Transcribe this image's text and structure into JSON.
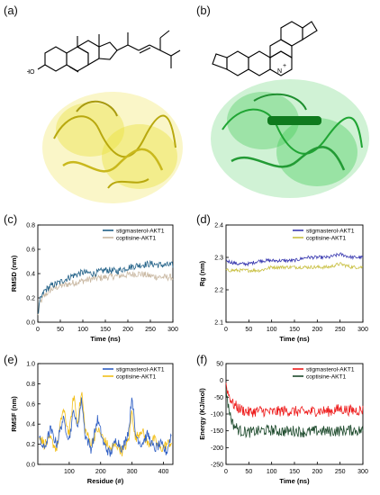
{
  "figure": {
    "panel_labels": [
      "(a)",
      "(b)",
      "(c)",
      "(d)",
      "(e)",
      "(f)"
    ],
    "atoms": {
      "a_hydroxyl": "HO",
      "b_nitrogen": "N",
      "b_charge": "+"
    },
    "colors": {
      "protein_a": "#e8e233",
      "protein_b": "#33c84a",
      "ligand_b": "#0f7a1e"
    }
  },
  "chart_data": [
    {
      "id": "c",
      "type": "line",
      "xlabel": "Time (ns)",
      "ylabel": "RMSD (nm)",
      "xlim": [
        0,
        300
      ],
      "ylim": [
        0,
        0.8
      ],
      "xticks": [
        "0",
        "50",
        "100",
        "150",
        "200",
        "250",
        "300"
      ],
      "yticks": [
        "0.0",
        "0.2",
        "0.4",
        "0.6",
        "0.8"
      ],
      "legend_position": "top-right",
      "series": [
        {
          "name": "stigmasterol-AKT1",
          "color": "#1f5f86",
          "x": [
            0,
            5,
            15,
            30,
            50,
            75,
            100,
            125,
            150,
            175,
            200,
            225,
            250,
            275,
            300
          ],
          "y": [
            0.05,
            0.18,
            0.26,
            0.3,
            0.33,
            0.38,
            0.41,
            0.4,
            0.43,
            0.42,
            0.45,
            0.47,
            0.48,
            0.47,
            0.47
          ]
        },
        {
          "name": "coptisine-AKT1",
          "color": "#c9b8a2",
          "x": [
            0,
            5,
            15,
            30,
            50,
            75,
            100,
            125,
            150,
            175,
            200,
            225,
            250,
            275,
            300
          ],
          "y": [
            0.05,
            0.16,
            0.22,
            0.27,
            0.3,
            0.32,
            0.34,
            0.36,
            0.37,
            0.38,
            0.39,
            0.4,
            0.38,
            0.37,
            0.37
          ]
        }
      ]
    },
    {
      "id": "d",
      "type": "line",
      "xlabel": "Time (ns)",
      "ylabel": "Rg (nm)",
      "xlim": [
        0,
        300
      ],
      "ylim": [
        2.1,
        2.4
      ],
      "xticks": [
        "0",
        "50",
        "100",
        "150",
        "200",
        "250",
        "300"
      ],
      "yticks": [
        "2.1",
        "2.2",
        "2.3",
        "2.4"
      ],
      "legend_position": "top-right",
      "series": [
        {
          "name": "stigmasterol-AKT1",
          "color": "#3a3ab0",
          "x": [
            0,
            25,
            50,
            75,
            100,
            125,
            150,
            175,
            200,
            225,
            250,
            275,
            300
          ],
          "y": [
            2.29,
            2.28,
            2.28,
            2.29,
            2.29,
            2.29,
            2.29,
            2.3,
            2.3,
            2.3,
            2.31,
            2.3,
            2.3
          ]
        },
        {
          "name": "coptisine-AKT1",
          "color": "#c9c043",
          "x": [
            0,
            25,
            50,
            75,
            100,
            125,
            150,
            175,
            200,
            225,
            250,
            275,
            300
          ],
          "y": [
            2.26,
            2.26,
            2.26,
            2.26,
            2.27,
            2.27,
            2.27,
            2.27,
            2.27,
            2.27,
            2.28,
            2.27,
            2.27
          ]
        }
      ]
    },
    {
      "id": "e",
      "type": "line",
      "xlabel": "Residue (#)",
      "ylabel": "RMSF (nm)",
      "xlim": [
        0,
        430
      ],
      "ylim": [
        0,
        1.0
      ],
      "xticks": [
        "100",
        "200",
        "300",
        "400"
      ],
      "yticks": [
        "0.0",
        "0.2",
        "0.4",
        "0.6",
        "0.8",
        "1.0"
      ],
      "legend_position": "top-right",
      "series": [
        {
          "name": "stigmasterol-AKT1",
          "color": "#2f5fc4",
          "x": [
            5,
            20,
            40,
            60,
            80,
            100,
            115,
            125,
            140,
            150,
            170,
            190,
            210,
            230,
            250,
            270,
            290,
            300,
            310,
            330,
            350,
            370,
            390,
            410,
            425
          ],
          "y": [
            0.25,
            0.15,
            0.35,
            0.2,
            0.45,
            0.25,
            0.55,
            0.35,
            0.65,
            0.3,
            0.15,
            0.45,
            0.2,
            0.1,
            0.25,
            0.15,
            0.35,
            0.7,
            0.3,
            0.2,
            0.3,
            0.15,
            0.2,
            0.12,
            0.3
          ]
        },
        {
          "name": "coptisine-AKT1",
          "color": "#f2bf1a",
          "x": [
            5,
            20,
            40,
            60,
            80,
            100,
            115,
            125,
            140,
            150,
            170,
            190,
            210,
            230,
            250,
            270,
            290,
            300,
            310,
            330,
            350,
            370,
            390,
            410,
            425
          ],
          "y": [
            0.3,
            0.2,
            0.25,
            0.15,
            0.55,
            0.3,
            0.7,
            0.4,
            0.72,
            0.35,
            0.2,
            0.35,
            0.25,
            0.15,
            0.2,
            0.12,
            0.25,
            0.55,
            0.25,
            0.35,
            0.2,
            0.25,
            0.15,
            0.2,
            0.22
          ]
        }
      ]
    },
    {
      "id": "f",
      "type": "line",
      "xlabel": "Time (ns)",
      "ylabel": "Energy (KJ/mol)",
      "xlim": [
        0,
        300
      ],
      "ylim": [
        -250,
        50
      ],
      "xticks": [
        "0",
        "50",
        "100",
        "150",
        "200",
        "250",
        "300"
      ],
      "yticks": [
        "-250",
        "-200",
        "-150",
        "-100",
        "-50",
        "0",
        "50"
      ],
      "legend_position": "top-right",
      "series": [
        {
          "name": "stigmasterol-AKT1",
          "color": "#ee1c1c",
          "x": [
            0,
            5,
            15,
            30,
            50,
            75,
            100,
            125,
            150,
            175,
            200,
            225,
            250,
            275,
            300
          ],
          "y": [
            -10,
            -40,
            -70,
            -85,
            -95,
            -90,
            -95,
            -90,
            -92,
            -95,
            -90,
            -92,
            -85,
            -90,
            -88
          ]
        },
        {
          "name": "coptisine-AKT1",
          "color": "#1d4a2c",
          "x": [
            0,
            5,
            15,
            30,
            50,
            75,
            100,
            125,
            150,
            175,
            200,
            225,
            250,
            275,
            300
          ],
          "y": [
            -20,
            -80,
            -130,
            -150,
            -155,
            -150,
            -148,
            -152,
            -150,
            -155,
            -150,
            -152,
            -150,
            -148,
            -150
          ]
        }
      ]
    }
  ]
}
